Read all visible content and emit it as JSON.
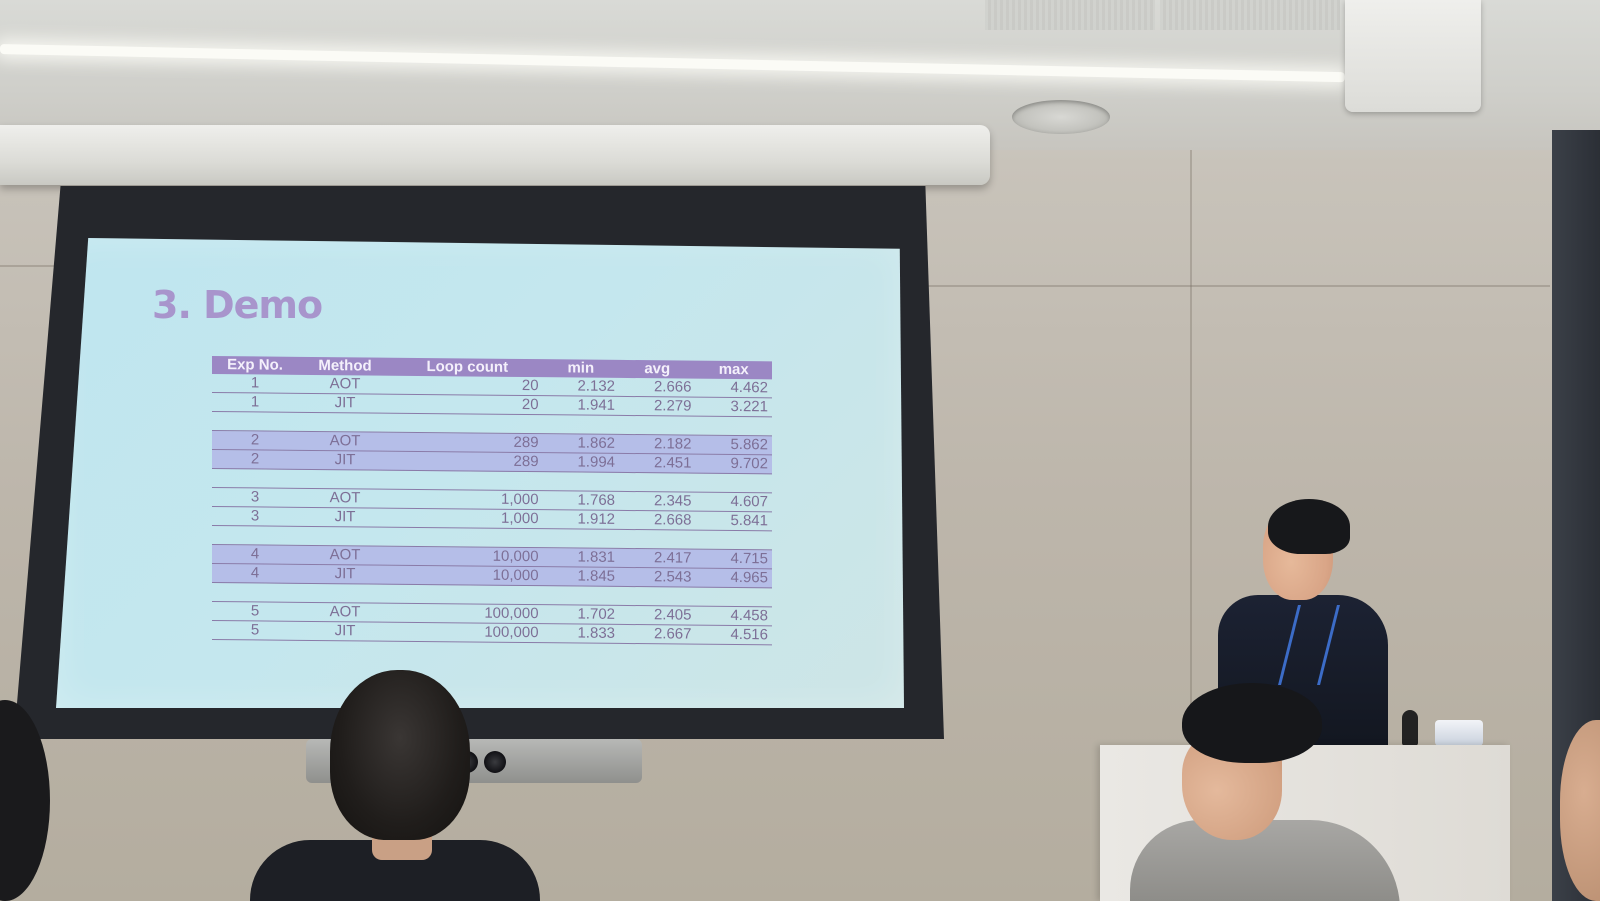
{
  "slide": {
    "title": "3. Demo",
    "table": {
      "headers": [
        "Exp No.",
        "Method",
        "Loop count",
        "min",
        "avg",
        "max"
      ],
      "rows": [
        {
          "exp": "1",
          "method": "AOT",
          "loop": "20",
          "min": "2.132",
          "avg": "2.666",
          "max": "4.462"
        },
        {
          "exp": "1",
          "method": "JIT",
          "loop": "20",
          "min": "1.941",
          "avg": "2.279",
          "max": "3.221"
        },
        {
          "exp": "2",
          "method": "AOT",
          "loop": "289",
          "min": "1.862",
          "avg": "2.182",
          "max": "5.862"
        },
        {
          "exp": "2",
          "method": "JIT",
          "loop": "289",
          "min": "1.994",
          "avg": "2.451",
          "max": "9.702"
        },
        {
          "exp": "3",
          "method": "AOT",
          "loop": "1,000",
          "min": "1.768",
          "avg": "2.345",
          "max": "4.607"
        },
        {
          "exp": "3",
          "method": "JIT",
          "loop": "1,000",
          "min": "1.912",
          "avg": "2.668",
          "max": "5.841"
        },
        {
          "exp": "4",
          "method": "AOT",
          "loop": "10,000",
          "min": "1.831",
          "avg": "2.417",
          "max": "4.715"
        },
        {
          "exp": "4",
          "method": "JIT",
          "loop": "10,000",
          "min": "1.845",
          "avg": "2.543",
          "max": "4.965"
        },
        {
          "exp": "5",
          "method": "AOT",
          "loop": "100,000",
          "min": "1.702",
          "avg": "2.405",
          "max": "4.458"
        },
        {
          "exp": "5",
          "method": "JIT",
          "loop": "100,000",
          "min": "1.833",
          "avg": "2.667",
          "max": "4.516"
        }
      ]
    }
  },
  "colors": {
    "slide_background": "#c2e6ee",
    "title": "#a895cc",
    "header_fill": "#9b87c4",
    "highlight_row": "#b5bee8"
  }
}
